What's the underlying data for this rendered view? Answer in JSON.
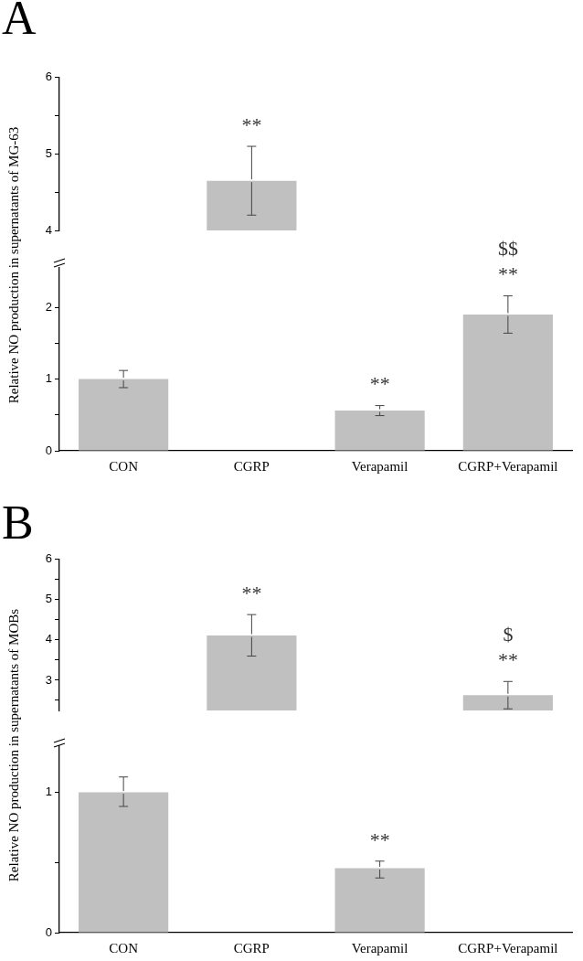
{
  "chart_data": [
    {
      "type": "bar",
      "title": "A",
      "ylabel": "Relative NO production in supernatants of MG-63",
      "categories": [
        "CON",
        "CGRP",
        "Verapamil",
        "CGRP+Verapamil"
      ],
      "values": [
        null,
        4.65,
        null,
        null
      ],
      "errors": [
        null,
        [
          4.2,
          5.1
        ],
        null,
        null
      ],
      "color": "#c0c0c0",
      "ylim": [
        4,
        6
      ],
      "yticks": [
        4,
        {
          "value": 4.5,
          "label": null
        },
        5,
        {
          "value": 5.5,
          "label": null
        },
        6
      ],
      "tick_labels": "y",
      "annotations": [
        {
          "text": "**",
          "x": "CGRP",
          "y": 4.65
        }
      ]
    },
    {
      "type": "bar",
      "categories": [
        "CON",
        "CGRP",
        "Verapamil",
        "CGRP+Verapamil"
      ],
      "values": [
        1,
        null,
        0.56,
        1.9
      ],
      "errors": [
        [
          0.88,
          1.12
        ],
        null,
        [
          0.49,
          0.63
        ],
        [
          1.64,
          2.16
        ]
      ],
      "color": "#c0c0c0",
      "ylim": [
        0,
        2.55
      ],
      "yticks": [
        0,
        {
          "value": 0.5,
          "label": null
        },
        1,
        {
          "value": 1.5,
          "label": null
        },
        2
      ],
      "annotations": [
        {
          "text": "**",
          "x": "Verapamil",
          "y": 0.56
        },
        {
          "text": "**",
          "x": "CGRP+Verapamil",
          "y": 1.9
        },
        {
          "text": "$$",
          "x": "CGRP+Verapamil",
          "y": 1.9
        }
      ]
    },
    {
      "type": "bar",
      "title": "B",
      "ylabel": "Relative NO production in supernatants of MOBs",
      "categories": [
        "CON",
        "CGRP",
        "Verapamil",
        "CGRP+Verapamil"
      ],
      "values": [
        null,
        4.11,
        null,
        2.63
      ],
      "errors": [
        null,
        [
          3.6,
          4.63
        ],
        null,
        0.34
      ],
      "color": "#c0c0c0",
      "ylim": [
        2.25,
        6
      ],
      "yticks": [
        {
          "value": 2.5,
          "label": null
        },
        3,
        {
          "value": 3.5,
          "label": null
        },
        4,
        {
          "value": 4.5,
          "label": null
        },
        5,
        {
          "value": 5.5,
          "label": null
        },
        6
      ],
      "tick_labels": "y",
      "annotations": [
        {
          "text": "**",
          "x": "CGRP",
          "y": 4.11
        },
        {
          "text": "**",
          "x": "CGRP+Verapamil",
          "y": 2.63
        },
        {
          "text": "$",
          "x": "CGRP+Verapamil",
          "y": 2.63
        }
      ]
    },
    {
      "type": "bar",
      "categories": [
        "CON",
        "CGRP",
        "Verapamil",
        "CGRP+Verapamil"
      ],
      "values": [
        1,
        null,
        0.46,
        null
      ],
      "errors": [
        [
          0.9,
          1.11
        ],
        null,
        [
          0.39,
          0.51
        ],
        null
      ],
      "color": "#c0c0c0",
      "ylim": [
        0,
        1.33
      ],
      "yticks": [
        0,
        {
          "value": 0.5,
          "label": null
        },
        1
      ],
      "annotations": [
        {
          "text": "**",
          "x": "Verapamil",
          "y": 0.46
        }
      ]
    }
  ]
}
